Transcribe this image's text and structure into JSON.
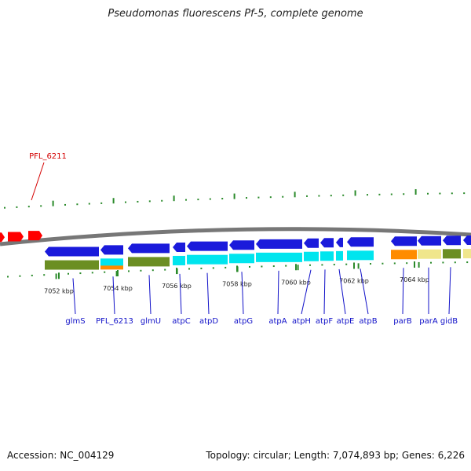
{
  "title": "Pseudomonas fluorescens Pf-5, complete genome",
  "footer": {
    "accession": "Accession: NC_004129",
    "stats": "Topology: circular; Length: 7,074,893 bp; Genes: 6,226"
  },
  "colors": {
    "backbone": "#888888",
    "tick": "#2a8a2a",
    "forward_gene": "#ff0000",
    "reverse_gene": "#1a1adb",
    "label_blue": "#1010c8",
    "label_red": "#d40000",
    "cog_green": "#6b8e23",
    "cog_cyan": "#00e5ee",
    "cog_orange": "#ff8c00",
    "cog_khaki": "#f0e68c"
  },
  "tick_labels": [
    "7052 kbp",
    "7054 kbp",
    "7056 kbp",
    "7058 kbp",
    "7060 kbp",
    "7062 kbp",
    "7064 kbp"
  ],
  "forward_genes": [
    {
      "label": "PFL_6211"
    }
  ],
  "reverse_genes": [
    {
      "label": "glmS"
    },
    {
      "label": "PFL_6213"
    },
    {
      "label": "glmU"
    },
    {
      "label": "atpC"
    },
    {
      "label": "atpD"
    },
    {
      "label": "atpG"
    },
    {
      "label": "atpA"
    },
    {
      "label": "atpH"
    },
    {
      "label": "atpF"
    },
    {
      "label": "atpE"
    },
    {
      "label": "atpB"
    },
    {
      "label": "parB"
    },
    {
      "label": "parA"
    },
    {
      "label": "gidB"
    }
  ]
}
